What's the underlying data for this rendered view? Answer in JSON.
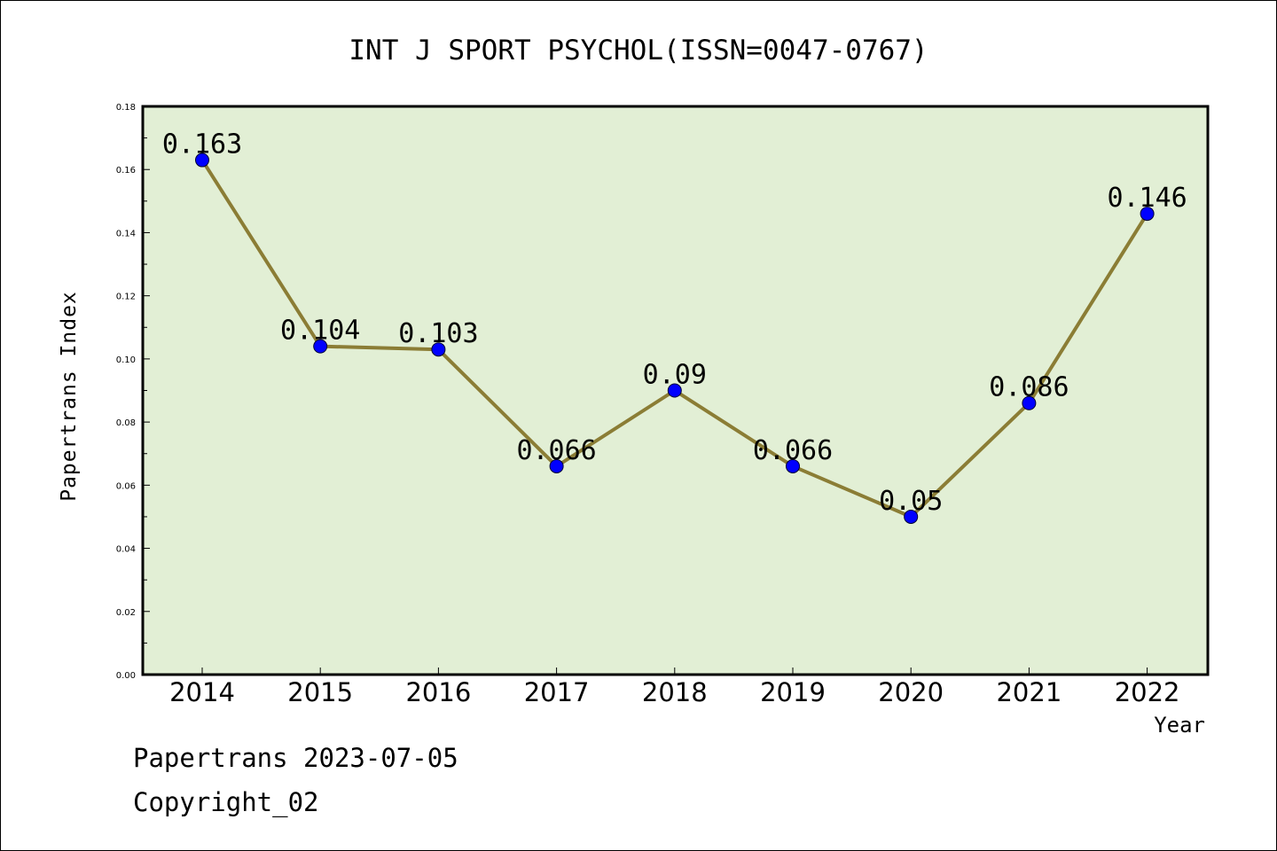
{
  "chart_data": {
    "type": "line",
    "title": "INT J SPORT PSYCHOL(ISSN=0047-0767)",
    "xlabel": "Year",
    "ylabel": "Papertrans Index",
    "categories": [
      "2014",
      "2015",
      "2016",
      "2017",
      "2018",
      "2019",
      "2020",
      "2021",
      "2022"
    ],
    "values": [
      0.163,
      0.104,
      0.103,
      0.066,
      0.09,
      0.066,
      0.05,
      0.086,
      0.146
    ],
    "data_labels": [
      "0.163",
      "0.104",
      "0.103",
      "0.066",
      "0.09",
      "0.066",
      "0.05",
      "0.086",
      "0.146"
    ],
    "ylim": [
      0,
      0.18
    ],
    "yticks": [
      "0.00",
      "0.02",
      "0.04",
      "0.06",
      "0.08",
      "0.10",
      "0.12",
      "0.14",
      "0.16",
      "0.18"
    ],
    "grid": false,
    "colors": {
      "plot_background": "#e2efd5",
      "line": "#8b7d35",
      "marker": "#0000ff"
    }
  },
  "footer": {
    "line1": "Papertrans 2023-07-05",
    "line2": "Copyright_02"
  }
}
